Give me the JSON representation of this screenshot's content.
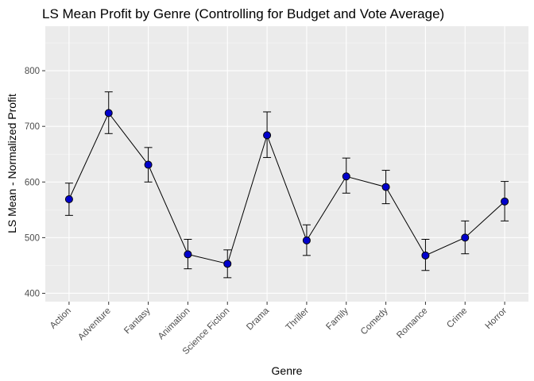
{
  "chart_data": {
    "type": "line",
    "title": "LS Mean Profit by Genre (Controlling for Budget and Vote Average)",
    "xlabel": "Genre",
    "ylabel": "LS Mean - Normalized Profit",
    "ylim": [
      385,
      880
    ],
    "yticks": [
      400,
      500,
      600,
      700,
      800
    ],
    "grid": true,
    "categories": [
      "Action",
      "Adventure",
      "Fantasy",
      "Animation",
      "Science Fiction",
      "Drama",
      "Thriller",
      "Family",
      "Comedy",
      "Romance",
      "Crime",
      "Horror"
    ],
    "values": [
      569,
      724,
      631,
      470,
      453,
      684,
      495,
      610,
      591,
      468,
      500,
      565
    ],
    "lower": [
      540,
      687,
      600,
      444,
      428,
      644,
      468,
      580,
      561,
      441,
      471,
      530
    ],
    "upper": [
      598,
      762,
      662,
      497,
      478,
      726,
      523,
      643,
      621,
      497,
      530,
      601
    ],
    "colors": {
      "point_fill": "#0000cd",
      "panel_bg": "#ebebeb",
      "line": "#000000"
    }
  }
}
